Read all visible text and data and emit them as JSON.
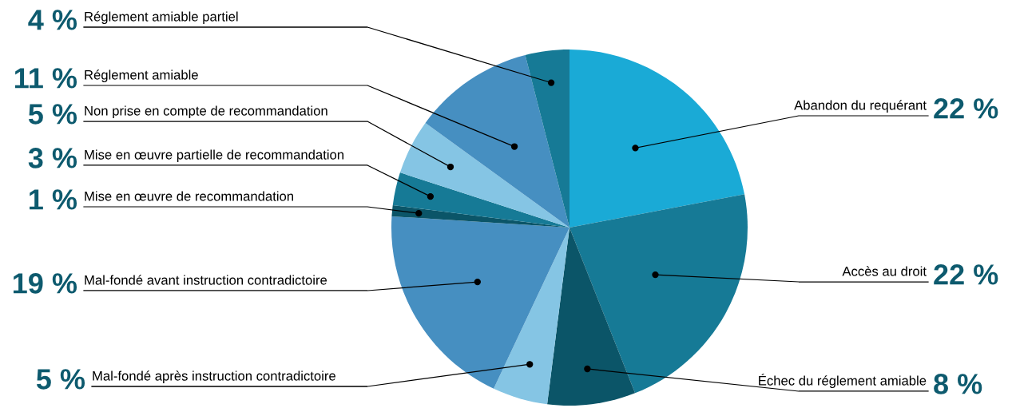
{
  "chart_data": {
    "type": "pie",
    "categories": [
      "Abandon du requérant",
      "Accès au droit",
      "Échec du réglement amiable",
      "Mal-fondé après instruction contradictoire",
      "Mal-fondé avant instruction contradictoire",
      "Mise en œuvre de recommandation",
      "Mise en œuvre partielle de recommandation",
      "Non prise en compte de recommandation",
      "Réglement amiable",
      "Réglement amiable partiel"
    ],
    "values": [
      22,
      22,
      8,
      5,
      19,
      1,
      3,
      5,
      11,
      4
    ],
    "value_labels": [
      "22 %",
      "22 %",
      "8 %",
      "5 %",
      "19 %",
      "1 %",
      "3 %",
      "5 %",
      "11 %",
      "4 %"
    ],
    "colors": [
      "#1aaad6",
      "#167a96",
      "#0b5568",
      "#85c5e4",
      "#468fc1",
      "#0b5568",
      "#167a96",
      "#85c5e4",
      "#468fc1",
      "#167a96"
    ]
  }
}
